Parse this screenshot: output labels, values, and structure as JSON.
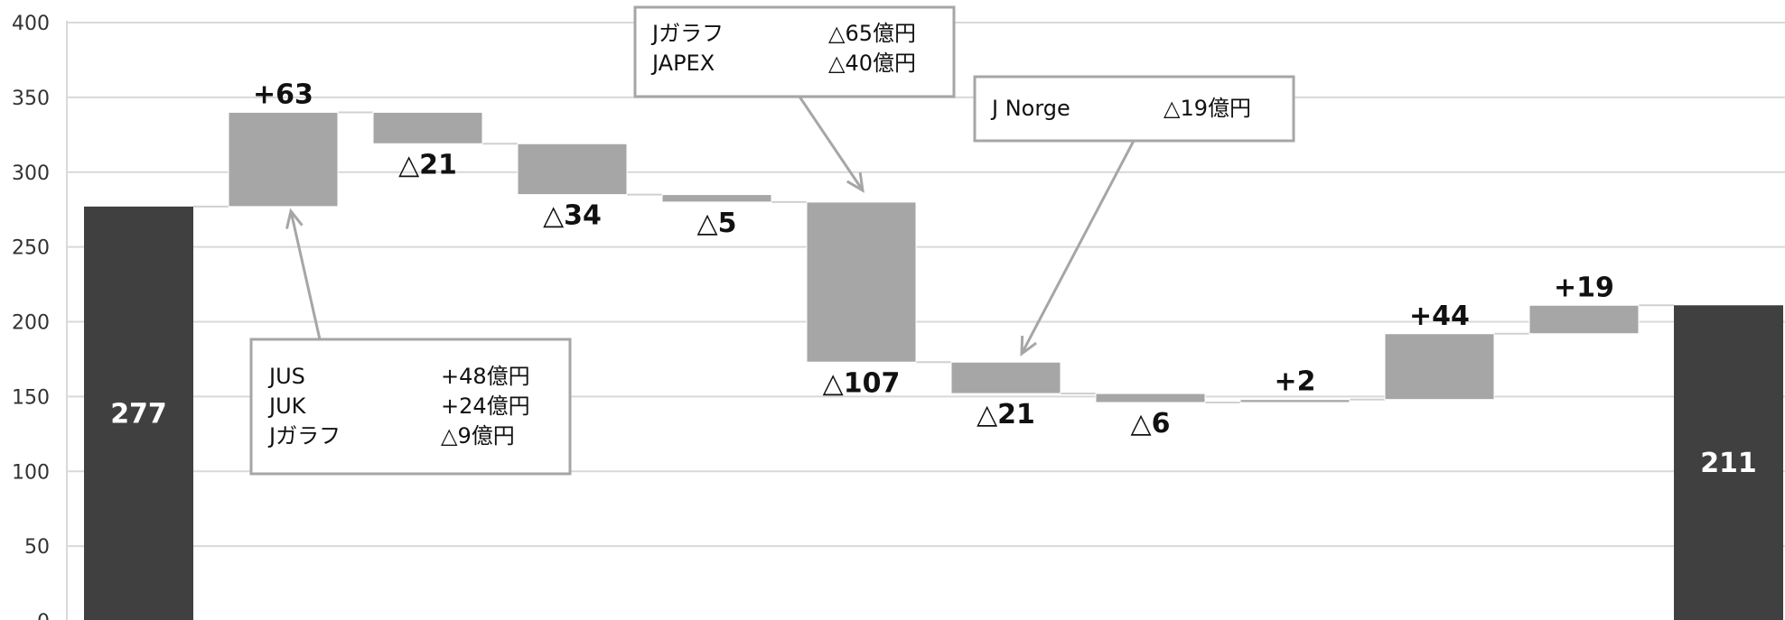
{
  "chart_data": {
    "type": "bar",
    "subtype": "waterfall",
    "ylim": [
      0,
      400
    ],
    "yticks": [
      0,
      50,
      100,
      150,
      200,
      250,
      300,
      350,
      400
    ],
    "grid": true,
    "colors": {
      "total": "#404040",
      "step": "#a6a6a6",
      "grid": "#d9d9d9",
      "callout_border": "#a6a6a6",
      "connector": "#d0d0d0"
    },
    "start": {
      "value": 277,
      "label": "277"
    },
    "steps": [
      {
        "value": 63,
        "label": "+63"
      },
      {
        "value": -21,
        "label": "△21"
      },
      {
        "value": -34,
        "label": "△34"
      },
      {
        "value": -5,
        "label": "△5"
      },
      {
        "value": -107,
        "label": "△107"
      },
      {
        "value": -21,
        "label": "△21"
      },
      {
        "value": -6,
        "label": "△6"
      },
      {
        "value": 2,
        "label": "+2"
      },
      {
        "value": 44,
        "label": "+44"
      },
      {
        "value": 19,
        "label": "+19"
      }
    ],
    "end": {
      "value": 211,
      "label": "211"
    },
    "callouts": [
      {
        "lines": [
          {
            "name": "JUS",
            "value": "+48億円"
          },
          {
            "name": "JUK",
            "value": "+24億円"
          },
          {
            "name": "Jガラフ",
            "value": "△9億円"
          }
        ]
      },
      {
        "lines": [
          {
            "name": "Jガラフ",
            "value": "△65億円"
          },
          {
            "name": "JAPEX",
            "value": "△40億円"
          }
        ]
      },
      {
        "lines": [
          {
            "name": "J Norge",
            "value": "△19億円"
          }
        ]
      }
    ]
  }
}
